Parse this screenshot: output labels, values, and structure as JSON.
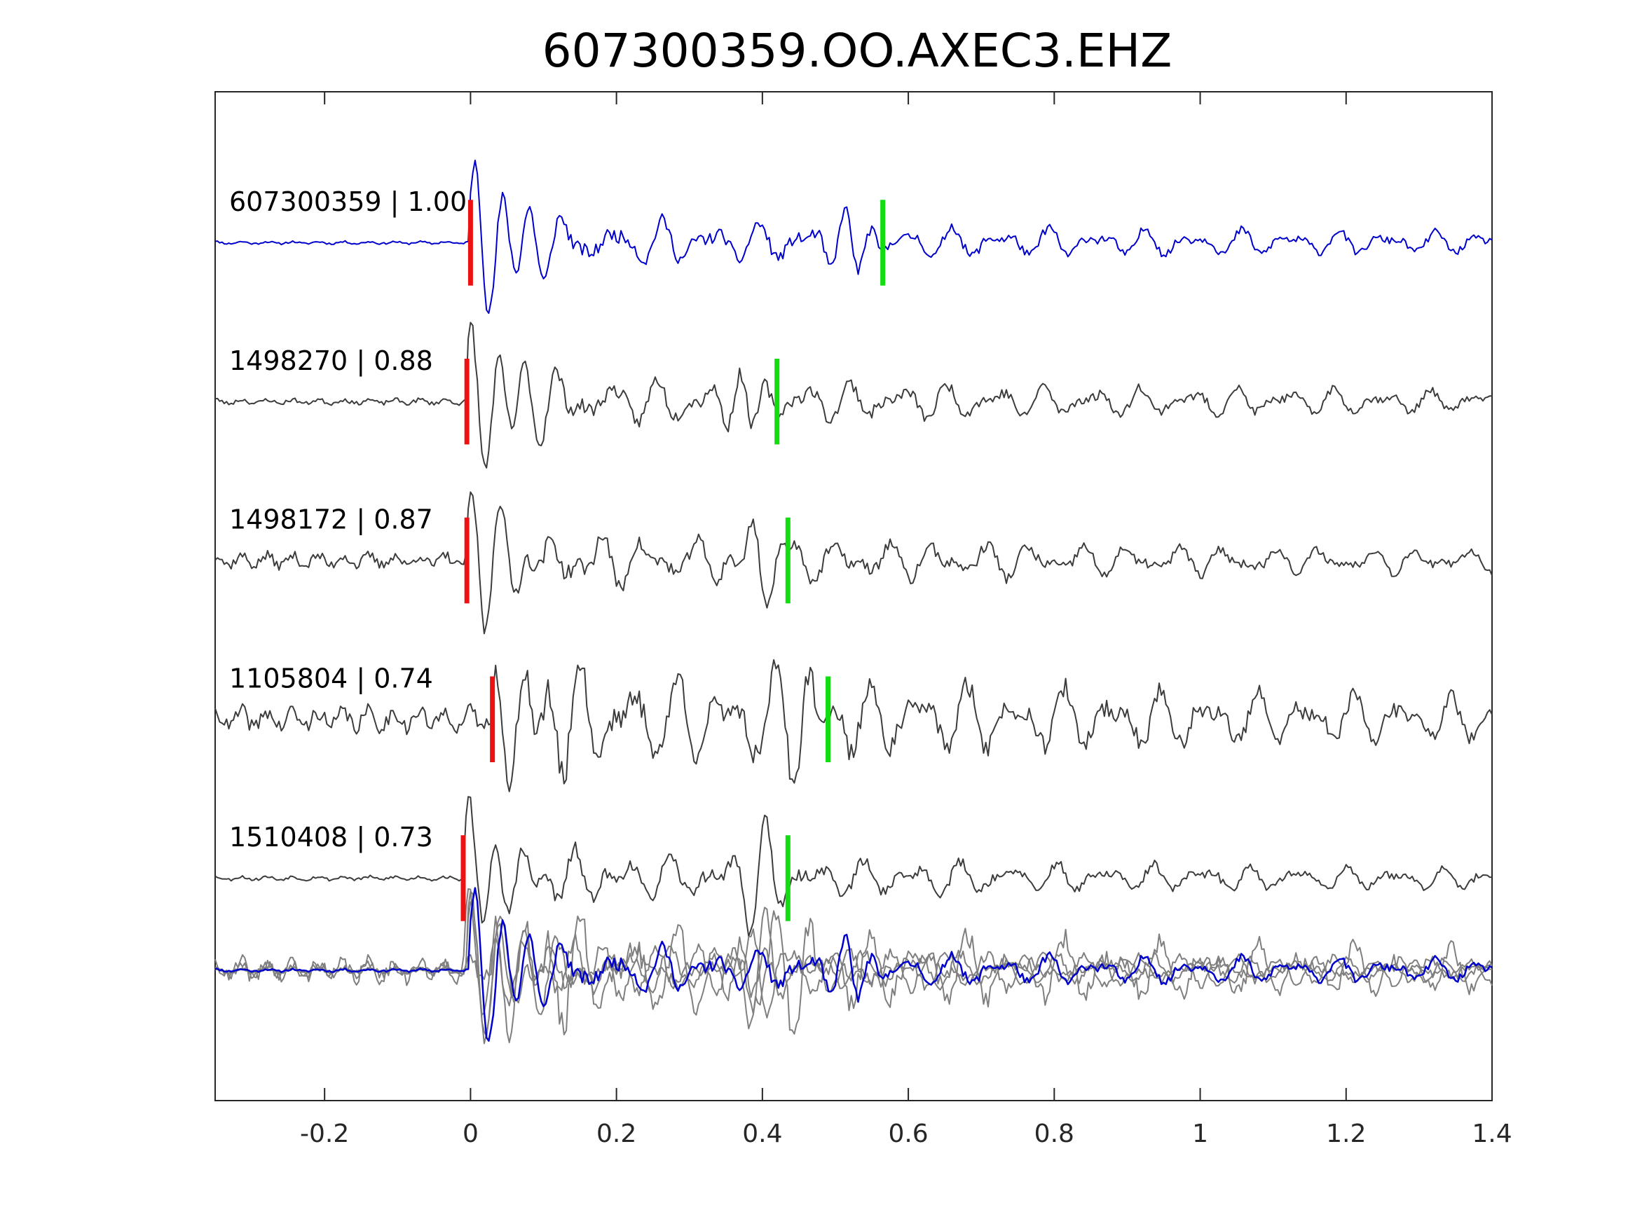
{
  "chart_data": {
    "type": "line",
    "title": "607300359.OO.AXEC3.EHZ",
    "xlabel": "",
    "ylabel": "",
    "xlim": [
      -0.35,
      1.4
    ],
    "xticks": [
      -0.2,
      0,
      0.2,
      0.4,
      0.6,
      0.8,
      1,
      1.2,
      1.4
    ],
    "xtick_labels": [
      "-0.2",
      "0",
      "0.2",
      "0.4",
      "0.6",
      "0.8",
      "1",
      "1.2",
      "1.4"
    ],
    "grid": false,
    "legend": "none",
    "colors": {
      "template": "#0000cc",
      "match": "#3c3c3c",
      "stack": "#7f7f7f",
      "p_pick": "#ee1111",
      "s_pick": "#11dd11"
    },
    "series": [
      {
        "id": "607300359",
        "name": "607300359 | 1.00",
        "role": "template",
        "p_pick": 0.0,
        "s_pick": 0.565,
        "onset": 0.0,
        "amplitude": 1.0,
        "pre_noise": 0.02,
        "coda_noise": 0.3,
        "seed": 11
      },
      {
        "id": "1498270",
        "name": "1498270 | 0.88",
        "role": "match",
        "p_pick": -0.005,
        "s_pick": 0.42,
        "onset": -0.005,
        "amplitude": 1.0,
        "pre_noise": 0.04,
        "coda_noise": 0.32,
        "seed": 23
      },
      {
        "id": "1498172",
        "name": "1498172 | 0.87",
        "role": "match",
        "p_pick": -0.005,
        "s_pick": 0.435,
        "onset": -0.005,
        "amplitude": 1.0,
        "pre_noise": 0.1,
        "coda_noise": 0.34,
        "seed": 37
      },
      {
        "id": "1105804",
        "name": "1105804 | 0.74",
        "role": "match",
        "p_pick": 0.03,
        "s_pick": 0.49,
        "onset": 0.03,
        "amplitude": 1.0,
        "pre_noise": 0.16,
        "coda_noise": 0.62,
        "seed": 41
      },
      {
        "id": "1510408",
        "name": "1510408 | 0.73",
        "role": "match",
        "p_pick": -0.01,
        "s_pick": 0.435,
        "onset": -0.01,
        "amplitude": 1.0,
        "pre_noise": 0.03,
        "coda_noise": 0.3,
        "seed": 53
      }
    ],
    "stack_overlay": true
  }
}
